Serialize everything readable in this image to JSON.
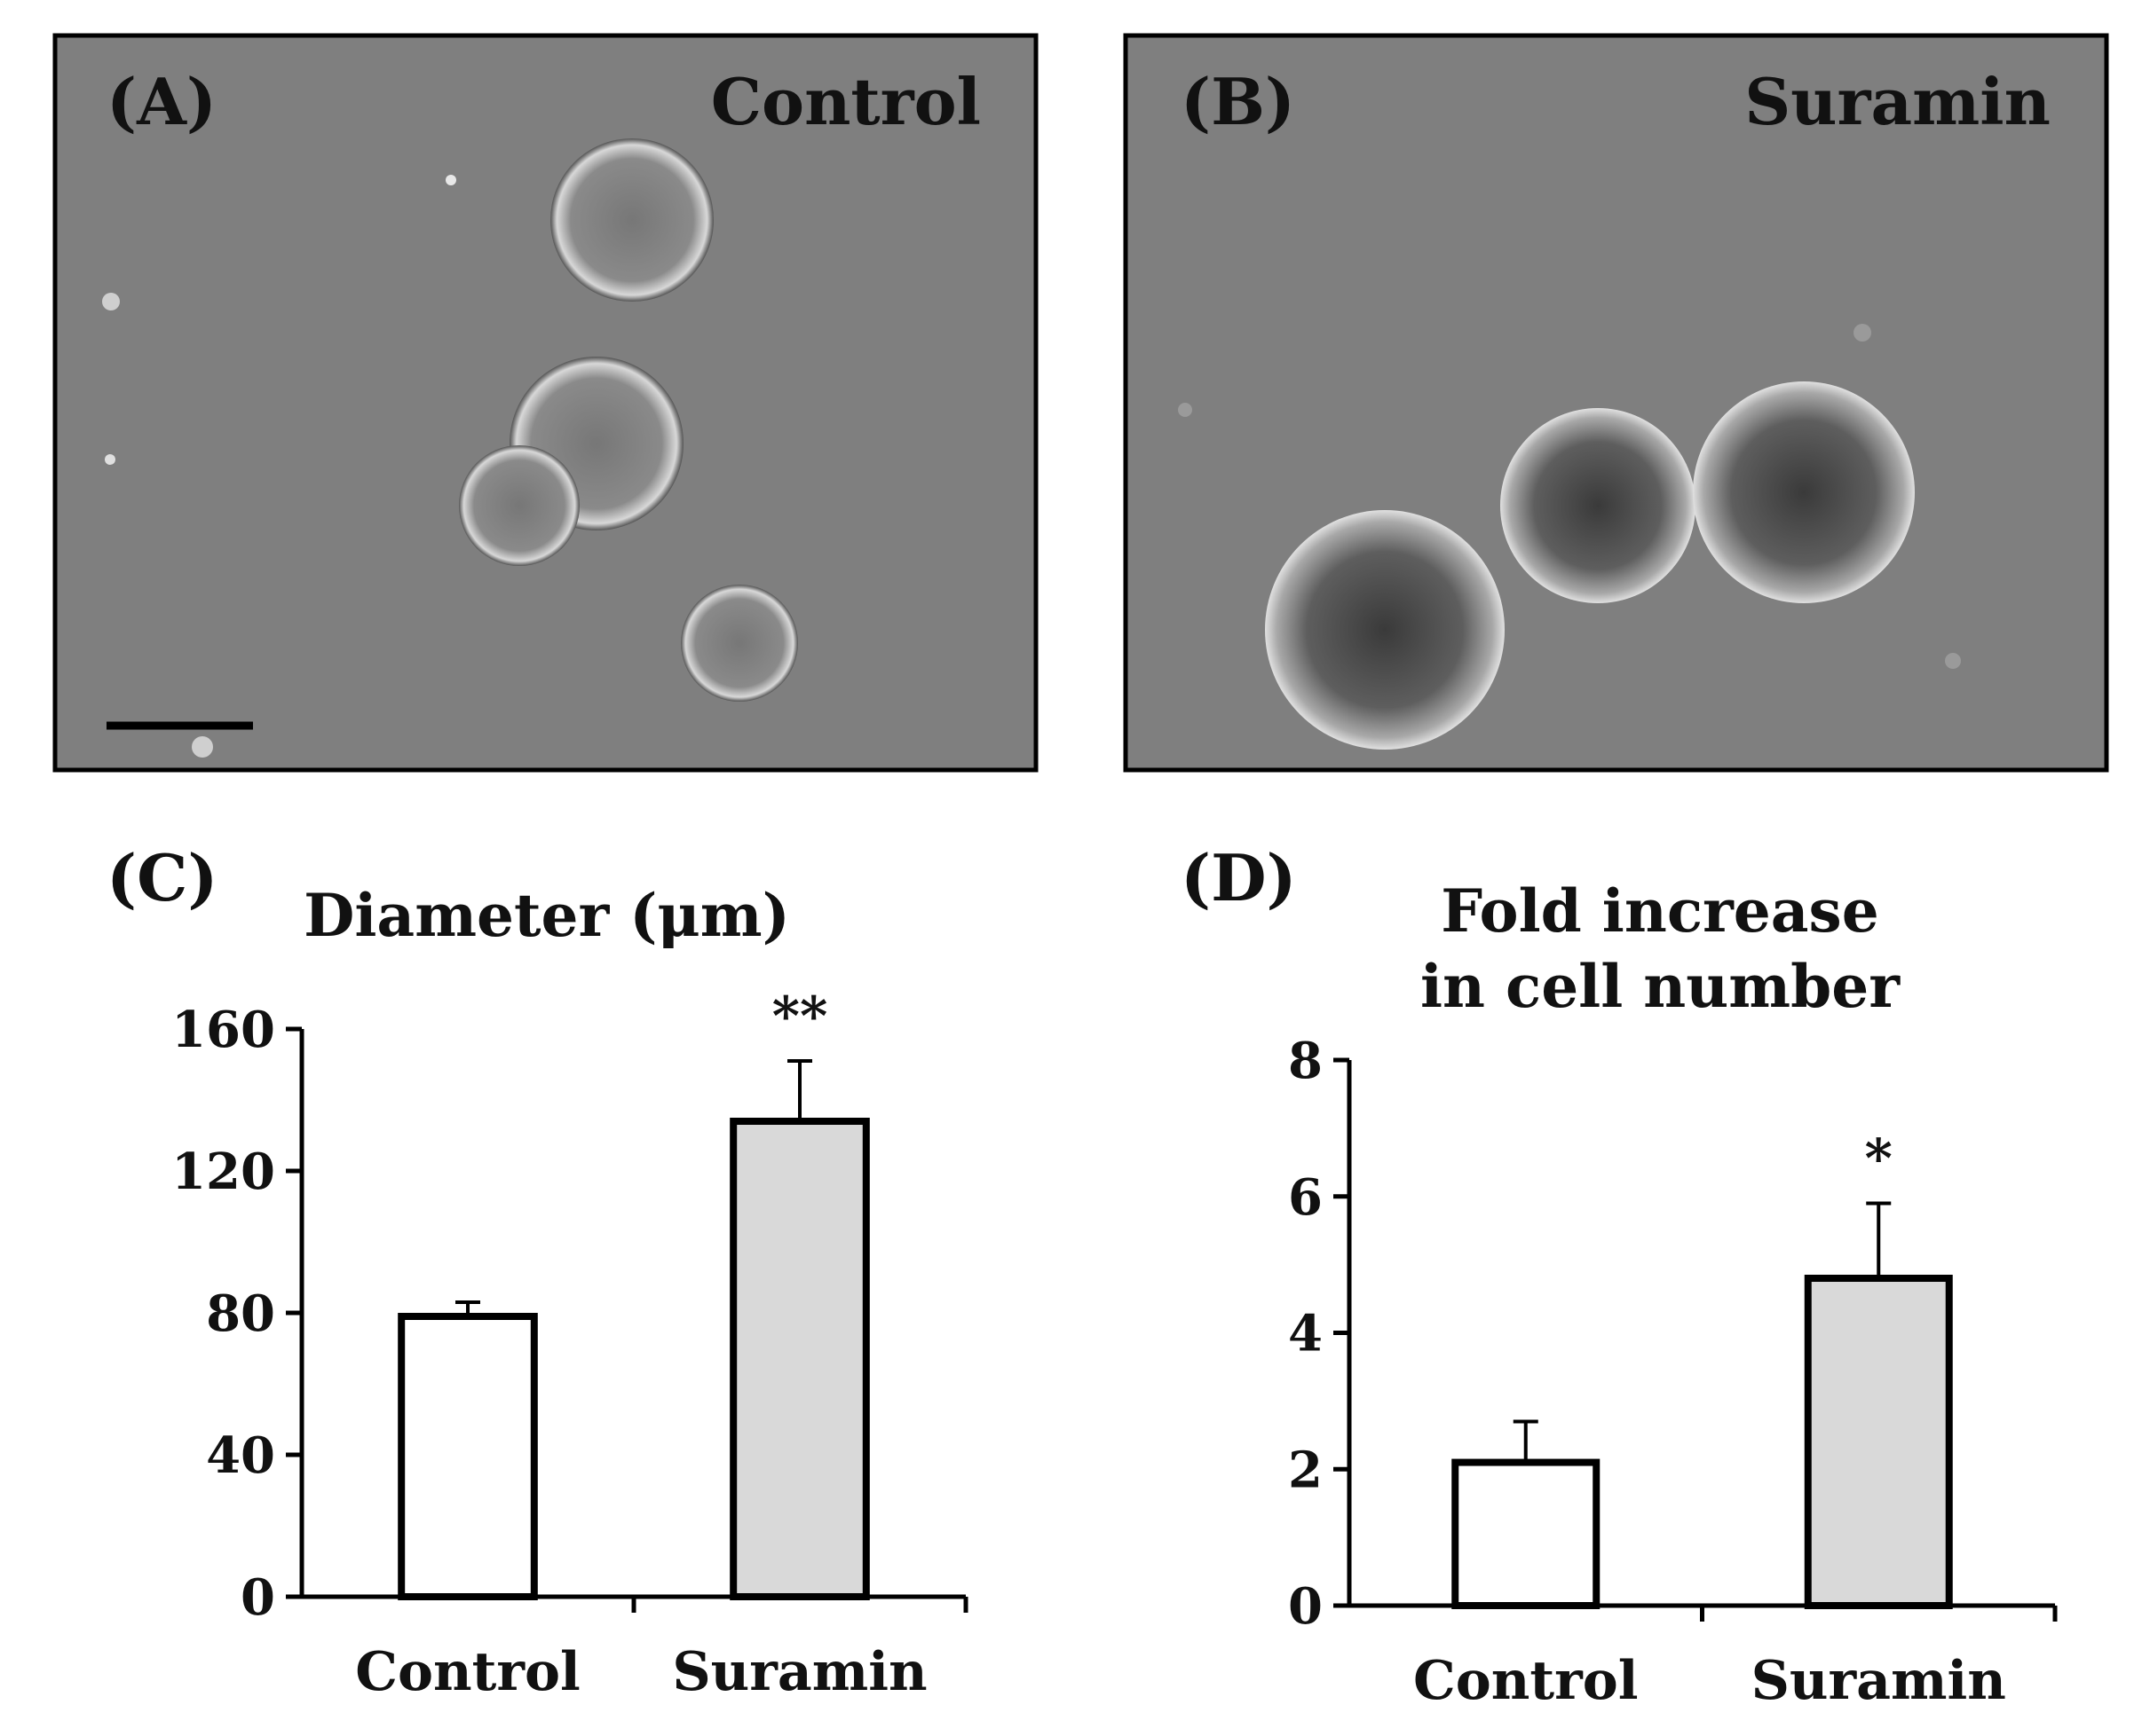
{
  "panels": {
    "a": {
      "letter": "(A)",
      "label": "Control"
    },
    "b": {
      "letter": "(B)",
      "label": "Suramin"
    },
    "c": {
      "letter": "(C)"
    },
    "d": {
      "letter": "(D)"
    }
  },
  "colors": {
    "micrograph_background": "#7f7f7f",
    "bar_control": "#ffffff",
    "bar_suramin": "#d9d9d9",
    "outline": "#000000"
  },
  "chart_data": [
    {
      "type": "bar",
      "title": "Diameter (μm)",
      "categories": [
        "Control",
        "Suramin"
      ],
      "values": [
        79,
        134
      ],
      "errors": [
        4,
        17
      ],
      "significance": [
        "",
        "**"
      ],
      "ylim": [
        0,
        160
      ],
      "yticks": [
        0,
        40,
        80,
        120,
        160
      ],
      "grid": false,
      "legend": "none"
    },
    {
      "type": "bar",
      "title": [
        "Fold increase",
        "in cell number"
      ],
      "categories": [
        "Control",
        "Suramin"
      ],
      "values": [
        2.1,
        4.8
      ],
      "errors": [
        0.6,
        1.1
      ],
      "significance": [
        "",
        "*"
      ],
      "ylim": [
        0,
        8
      ],
      "yticks": [
        0,
        2,
        4,
        6,
        8
      ],
      "grid": false,
      "legend": "none"
    }
  ]
}
